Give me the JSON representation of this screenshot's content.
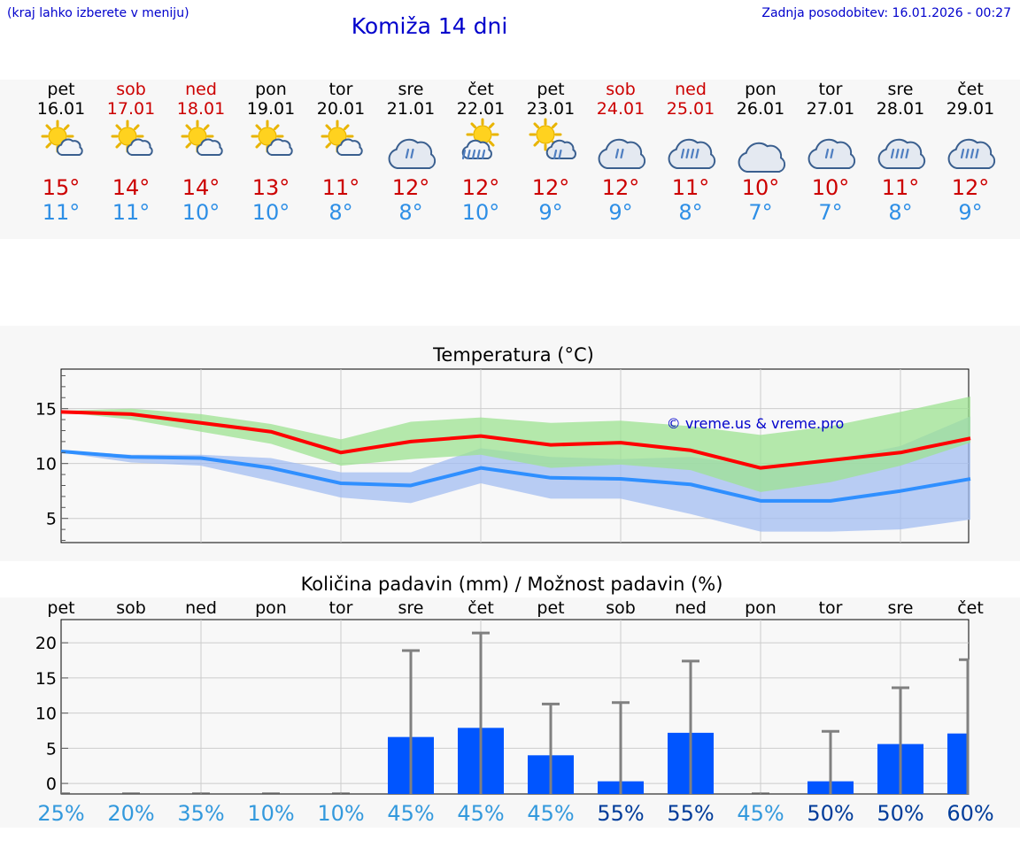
{
  "header": {
    "hint": "(kraj lahko izberete v meniju)",
    "title": "Komiža 14 dni",
    "updated": "Zadnja posodobitev: 16.01.2026 - 00:27"
  },
  "colors": {
    "weekday": "#000000",
    "weekend": "#cc0000",
    "max_temp": "#cc0000",
    "min_temp": "#2e8fe6",
    "max_line": "#ff0000",
    "min_line": "#2f8fff",
    "max_band": "#9ee392",
    "min_band": "#a3bdf2",
    "bar": "#0055ff",
    "whisker": "#808080",
    "pct_low": "#3399dd",
    "pct_high": "#003c9a"
  },
  "days": [
    {
      "name": "pet",
      "date": "16.01",
      "weekend": false,
      "icon": "sun-cloud-icon",
      "max": "15°",
      "min": "11°"
    },
    {
      "name": "sob",
      "date": "17.01",
      "weekend": true,
      "icon": "sun-cloud-icon",
      "max": "14°",
      "min": "11°"
    },
    {
      "name": "ned",
      "date": "18.01",
      "weekend": true,
      "icon": "sun-cloud-icon",
      "max": "14°",
      "min": "10°"
    },
    {
      "name": "pon",
      "date": "19.01",
      "weekend": false,
      "icon": "sun-cloud-icon",
      "max": "13°",
      "min": "10°"
    },
    {
      "name": "tor",
      "date": "20.01",
      "weekend": false,
      "icon": "sun-cloud-icon",
      "max": "11°",
      "min": "8°"
    },
    {
      "name": "sre",
      "date": "21.01",
      "weekend": false,
      "icon": "cloud-rain-icon",
      "max": "12°",
      "min": "8°"
    },
    {
      "name": "čet",
      "date": "22.01",
      "weekend": false,
      "icon": "sun-heavy-rain-icon",
      "max": "12°",
      "min": "10°"
    },
    {
      "name": "pet",
      "date": "23.01",
      "weekend": false,
      "icon": "sun-rain-icon",
      "max": "12°",
      "min": "9°"
    },
    {
      "name": "sob",
      "date": "24.01",
      "weekend": true,
      "icon": "cloud-rain-icon",
      "max": "12°",
      "min": "9°"
    },
    {
      "name": "ned",
      "date": "25.01",
      "weekend": true,
      "icon": "cloud-heavy-rain-icon",
      "max": "11°",
      "min": "8°"
    },
    {
      "name": "pon",
      "date": "26.01",
      "weekend": false,
      "icon": "cloud-icon",
      "max": "10°",
      "min": "7°"
    },
    {
      "name": "tor",
      "date": "27.01",
      "weekend": false,
      "icon": "cloud-rain-icon",
      "max": "10°",
      "min": "7°"
    },
    {
      "name": "sre",
      "date": "28.01",
      "weekend": false,
      "icon": "cloud-heavy-rain-icon",
      "max": "11°",
      "min": "8°"
    },
    {
      "name": "čet",
      "date": "29.01",
      "weekend": false,
      "icon": "cloud-heavy-rain-icon",
      "max": "12°",
      "min": "9°"
    }
  ],
  "chart_data": [
    {
      "type": "line",
      "title": "Temperatura (°C)",
      "watermark": "© vreme.us & vreme.pro",
      "x": [
        0,
        1,
        2,
        3,
        4,
        5,
        6,
        7,
        8,
        9,
        10,
        11,
        12,
        13
      ],
      "ylim": [
        2.8,
        18.6
      ],
      "yticks": [
        5,
        10,
        15
      ],
      "series": [
        {
          "name": "max",
          "values": [
            14.7,
            14.5,
            13.7,
            12.9,
            11.0,
            12.0,
            12.5,
            11.7,
            11.9,
            11.2,
            9.6,
            10.3,
            11.0,
            12.3
          ]
        },
        {
          "name": "min",
          "values": [
            11.1,
            10.6,
            10.5,
            9.6,
            8.2,
            8.0,
            9.6,
            8.7,
            8.6,
            8.1,
            6.6,
            6.6,
            7.5,
            8.6
          ]
        }
      ],
      "bands": [
        {
          "name": "max_range",
          "low": [
            14.7,
            14.0,
            12.9,
            11.8,
            9.8,
            10.4,
            10.8,
            9.6,
            9.9,
            9.4,
            7.4,
            8.3,
            9.8,
            11.9
          ],
          "high": [
            14.8,
            15.0,
            14.5,
            13.6,
            12.2,
            13.8,
            14.2,
            13.7,
            13.9,
            13.4,
            12.6,
            13.4,
            14.7,
            16.1
          ]
        },
        {
          "name": "min_range",
          "low": [
            11.0,
            10.1,
            9.8,
            8.4,
            6.9,
            6.4,
            8.2,
            6.8,
            6.8,
            5.4,
            3.8,
            3.8,
            4.0,
            4.9
          ],
          "high": [
            11.2,
            10.8,
            10.8,
            10.5,
            9.2,
            9.2,
            11.4,
            10.6,
            10.4,
            10.6,
            9.8,
            10.3,
            11.6,
            14.3
          ]
        }
      ]
    },
    {
      "type": "bar",
      "title": "Količina padavin (mm) / Možnost padavin (%)",
      "categories": [
        "pet",
        "sob",
        "ned",
        "pon",
        "tor",
        "sre",
        "čet",
        "pet",
        "sob",
        "ned",
        "pon",
        "tor",
        "sre",
        "čet"
      ],
      "ylim": [
        -1.5,
        23.3
      ],
      "yticks": [
        0,
        5,
        10,
        15,
        20
      ],
      "ytick_labels": [
        "0",
        "5",
        "10",
        "15",
        "20"
      ],
      "series": [
        {
          "name": "amount_mm",
          "values": [
            0,
            0,
            0,
            0,
            0,
            6.6,
            7.9,
            4.0,
            0.3,
            7.2,
            0,
            0.3,
            5.6,
            7.1
          ]
        },
        {
          "name": "max_mm",
          "values": [
            0,
            0,
            0,
            0,
            0,
            18.9,
            21.4,
            11.3,
            11.5,
            17.4,
            0,
            7.4,
            13.6,
            17.6
          ]
        }
      ],
      "probability": [
        "25%",
        "20%",
        "35%",
        "10%",
        "10%",
        "45%",
        "45%",
        "45%",
        "55%",
        "55%",
        "45%",
        "50%",
        "50%",
        "60%"
      ]
    }
  ]
}
